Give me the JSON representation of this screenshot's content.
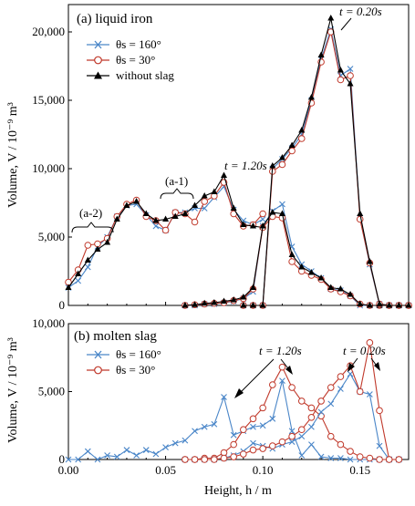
{
  "colors": {
    "theta160": "#4a86c8",
    "theta30": "#c0392b",
    "without_slag": "#000000"
  },
  "chart_data": [
    {
      "type": "line",
      "panel_label": "(a) liquid iron",
      "ylabel": "Volume, V / 10⁻⁹ m³",
      "ylim": [
        0,
        22000
      ],
      "xlim": [
        0,
        0.175
      ],
      "y_ticks": [
        "0",
        "5,000",
        "10,000",
        "15,000",
        "20,000"
      ],
      "y_tick_values": [
        0,
        5000,
        10000,
        15000,
        20000
      ],
      "grid": false,
      "legend_position": "upper-left",
      "legend": [
        "θs = 160°",
        "θs = 30°",
        "without slag"
      ],
      "annotations": [
        "t = 0.20s",
        "t = 1.20s",
        "(a-1)",
        "(a-2)"
      ],
      "series": [
        {
          "name": "θs = 160°",
          "color_key": "theta160",
          "marker": "x",
          "x": [
            0.0,
            0.005,
            0.01,
            0.015,
            0.02,
            0.025,
            0.03,
            0.035,
            0.04,
            0.045,
            0.05,
            0.055,
            0.06,
            0.065,
            0.07,
            0.075,
            0.08,
            0.085,
            0.09,
            0.095,
            0.1
          ],
          "y": [
            1300,
            1800,
            2800,
            4300,
            5000,
            6500,
            7300,
            7400,
            6600,
            5800,
            5500,
            6800,
            6800,
            7100,
            7100,
            7900,
            8700,
            7000,
            6200,
            5900,
            6300
          ]
        },
        {
          "name": "θs = 30°",
          "color_key": "theta30",
          "marker": "o",
          "x": [
            0.0,
            0.005,
            0.01,
            0.015,
            0.02,
            0.025,
            0.03,
            0.035,
            0.04,
            0.045,
            0.05,
            0.055,
            0.06,
            0.065,
            0.07,
            0.075,
            0.08,
            0.085,
            0.09,
            0.095,
            0.1
          ],
          "y": [
            1700,
            2600,
            4400,
            4500,
            4900,
            6500,
            7400,
            7700,
            6500,
            6200,
            5500,
            6800,
            6700,
            6100,
            7600,
            8000,
            9000,
            6700,
            5800,
            5900,
            6700
          ]
        },
        {
          "name": "without slag",
          "color_key": "without_slag",
          "marker": "triangle",
          "x": [
            0.0,
            0.005,
            0.01,
            0.015,
            0.02,
            0.025,
            0.03,
            0.035,
            0.04,
            0.045,
            0.05,
            0.055,
            0.06,
            0.065,
            0.07,
            0.075,
            0.08,
            0.085,
            0.09,
            0.095,
            0.1
          ],
          "y": [
            1300,
            2300,
            3300,
            4100,
            4600,
            6300,
            7300,
            7600,
            6700,
            6200,
            6300,
            6500,
            6700,
            7300,
            8000,
            8300,
            9500,
            7100,
            5900,
            5800,
            5700
          ]
        },
        {
          "name": "θs = 160°",
          "color_key": "theta160",
          "marker": "x",
          "x": [
            0.06,
            0.065,
            0.07,
            0.075,
            0.08,
            0.085,
            0.09,
            0.095,
            0.1,
            0.105,
            0.11,
            0.115,
            0.12,
            0.125,
            0.13,
            0.135,
            0.14,
            0.145,
            0.15,
            0.155,
            0.16,
            0.165,
            0.17,
            0.175
          ],
          "y": [
            0,
            0,
            100,
            100,
            200,
            300,
            500,
            1000,
            5800,
            6900,
            7400,
            4300,
            3000,
            2500,
            2000,
            1200,
            1100,
            700,
            0,
            0,
            0,
            0,
            0,
            0
          ]
        },
        {
          "name": "θs = 30°",
          "color_key": "theta30",
          "marker": "o",
          "x": [
            0.06,
            0.065,
            0.07,
            0.075,
            0.08,
            0.085,
            0.09,
            0.095,
            0.1,
            0.105,
            0.11,
            0.115,
            0.12,
            0.125,
            0.13,
            0.135,
            0.14,
            0.145,
            0.15,
            0.155,
            0.16,
            0.165,
            0.17,
            0.175
          ],
          "y": [
            0,
            50,
            100,
            150,
            200,
            350,
            500,
            1200,
            5700,
            6500,
            6400,
            3200,
            2500,
            2200,
            1900,
            1200,
            1000,
            700,
            100,
            0,
            0,
            0,
            0,
            0
          ]
        },
        {
          "name": "without slag",
          "color_key": "without_slag",
          "marker": "triangle",
          "x": [
            0.06,
            0.065,
            0.07,
            0.075,
            0.08,
            0.085,
            0.09,
            0.095,
            0.1,
            0.105,
            0.11,
            0.115,
            0.12,
            0.125,
            0.13,
            0.135,
            0.14,
            0.145,
            0.15,
            0.155,
            0.16,
            0.165,
            0.17,
            0.175
          ],
          "y": [
            0,
            50,
            150,
            200,
            300,
            400,
            600,
            1300,
            5800,
            6800,
            6700,
            3700,
            2800,
            2400,
            2000,
            1300,
            1200,
            800,
            100,
            0,
            0,
            0,
            0,
            0
          ]
        },
        {
          "name": "θs = 160°",
          "color_key": "theta160",
          "marker": "x",
          "x": [
            0.09,
            0.095,
            0.1,
            0.105,
            0.11,
            0.115,
            0.12,
            0.125,
            0.13,
            0.135,
            0.14,
            0.145,
            0.15,
            0.155,
            0.16,
            0.165,
            0.17,
            0.175
          ],
          "y": [
            0,
            0,
            0,
            10000,
            10700,
            11500,
            12500,
            15000,
            18000,
            20200,
            16800,
            17300,
            6400,
            3000,
            100,
            0,
            0,
            0
          ]
        },
        {
          "name": "θs = 30°",
          "color_key": "theta30",
          "marker": "o",
          "x": [
            0.09,
            0.095,
            0.1,
            0.105,
            0.11,
            0.115,
            0.12,
            0.125,
            0.13,
            0.135,
            0.14,
            0.145,
            0.15,
            0.155,
            0.16,
            0.165,
            0.17,
            0.175
          ],
          "y": [
            0,
            0,
            0,
            9800,
            10300,
            11300,
            12200,
            14800,
            17800,
            20000,
            16500,
            16800,
            6300,
            3100,
            100,
            0,
            0,
            0
          ]
        },
        {
          "name": "without slag",
          "color_key": "without_slag",
          "marker": "triangle",
          "x": [
            0.09,
            0.095,
            0.1,
            0.105,
            0.11,
            0.115,
            0.12,
            0.125,
            0.13,
            0.135,
            0.14,
            0.145,
            0.15,
            0.155,
            0.16,
            0.165,
            0.17,
            0.175
          ],
          "y": [
            0,
            0,
            0,
            10200,
            10800,
            11700,
            12800,
            15200,
            18300,
            21000,
            17200,
            16200,
            6700,
            3200,
            100,
            0,
            0,
            0
          ]
        }
      ]
    },
    {
      "type": "line",
      "panel_label": "(b) molten slag",
      "xlabel": "Height, h / m",
      "ylabel": "Volume, V / 10⁻⁹ m³",
      "ylim": [
        0,
        10000
      ],
      "xlim": [
        0,
        0.175
      ],
      "y_ticks": [
        "0",
        "5,000",
        "10,000"
      ],
      "y_tick_values": [
        0,
        5000,
        10000
      ],
      "x_ticks": [
        "0.00",
        "0.05",
        "0.10",
        "0.15"
      ],
      "x_tick_values": [
        0,
        0.05,
        0.1,
        0.15
      ],
      "grid": false,
      "legend_position": "upper-left",
      "legend": [
        "θs = 160°",
        "θs = 30°"
      ],
      "annotations": [
        "t = 1.20s",
        "t = 0.20s"
      ],
      "series": [
        {
          "name": "θs = 160°",
          "color_key": "theta160",
          "marker": "x",
          "x": [
            0.0,
            0.005,
            0.01,
            0.015,
            0.02,
            0.025,
            0.03,
            0.035,
            0.04,
            0.045,
            0.05,
            0.055,
            0.06,
            0.065,
            0.07,
            0.075,
            0.08,
            0.085,
            0.09,
            0.095,
            0.1,
            0.105,
            0.11,
            0.115,
            0.12,
            0.125,
            0.13,
            0.135,
            0.14,
            0.145,
            0.15,
            0.155,
            0.16,
            0.165,
            0.17
          ],
          "y": [
            0,
            0,
            600,
            0,
            300,
            200,
            700,
            300,
            700,
            400,
            900,
            1200,
            1400,
            2100,
            2400,
            2600,
            4600,
            1800,
            2100,
            2400,
            2500,
            3000,
            5800,
            2100,
            300,
            1100,
            200,
            100,
            100,
            0,
            0,
            0,
            0,
            0,
            0
          ]
        },
        {
          "name": "θs = 30°",
          "color_key": "theta30",
          "marker": "o",
          "x": [
            0.06,
            0.065,
            0.07,
            0.075,
            0.08,
            0.085,
            0.09,
            0.095,
            0.1,
            0.105,
            0.11,
            0.115,
            0.12,
            0.125,
            0.13,
            0.135,
            0.14,
            0.145,
            0.15,
            0.155,
            0.16,
            0.165,
            0.17
          ],
          "y": [
            0,
            0,
            100,
            100,
            500,
            1100,
            2200,
            3000,
            3800,
            5500,
            6800,
            5300,
            4300,
            3800,
            3200,
            1700,
            1100,
            600,
            200,
            100,
            0,
            0,
            0
          ]
        },
        {
          "name": "θs = 160°",
          "color_key": "theta160",
          "marker": "x",
          "x": [
            0.06,
            0.065,
            0.07,
            0.075,
            0.08,
            0.085,
            0.09,
            0.095,
            0.1,
            0.105,
            0.11,
            0.115,
            0.12,
            0.125,
            0.13,
            0.135,
            0.14,
            0.145,
            0.15,
            0.155,
            0.16,
            0.165,
            0.17
          ],
          "y": [
            0,
            0,
            0,
            0,
            100,
            300,
            600,
            1200,
            1000,
            800,
            1100,
            1300,
            1700,
            2400,
            3500,
            4100,
            5200,
            6300,
            5000,
            4800,
            1000,
            0,
            0
          ]
        },
        {
          "name": "θs = 30°",
          "color_key": "theta30",
          "marker": "o",
          "x": [
            0.06,
            0.065,
            0.07,
            0.075,
            0.08,
            0.085,
            0.09,
            0.095,
            0.1,
            0.105,
            0.11,
            0.115,
            0.12,
            0.125,
            0.13,
            0.135,
            0.14,
            0.145,
            0.15,
            0.155,
            0.16,
            0.165,
            0.17
          ],
          "y": [
            0,
            0,
            0,
            0,
            100,
            200,
            400,
            700,
            800,
            1000,
            1300,
            1700,
            2200,
            3100,
            4300,
            5300,
            6100,
            6900,
            5000,
            8600,
            3600,
            0,
            0
          ]
        }
      ]
    }
  ]
}
